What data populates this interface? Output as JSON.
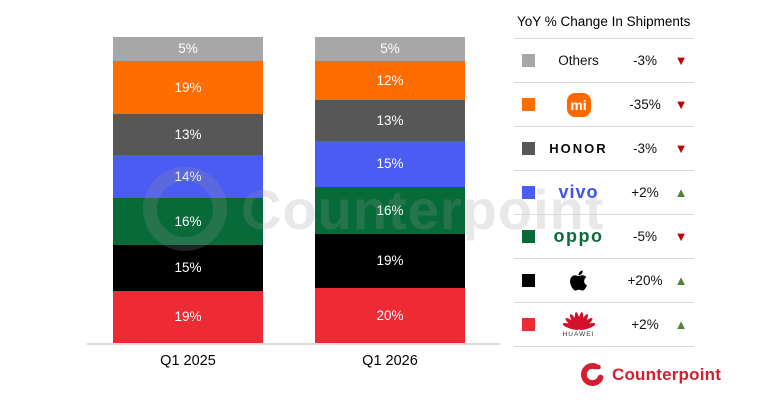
{
  "chart_data": {
    "type": "bar",
    "stacked": true,
    "categories": [
      "Q1 2025",
      "Q1 2026"
    ],
    "series": [
      {
        "name": "Others",
        "color": "#a7a7a7",
        "values": [
          5,
          5
        ]
      },
      {
        "name": "Xiaomi",
        "color": "#ff6c00",
        "values": [
          19,
          12
        ]
      },
      {
        "name": "HONOR",
        "color": "#575757",
        "values": [
          13,
          13
        ]
      },
      {
        "name": "vivo",
        "color": "#4b5cf2",
        "values": [
          14,
          15
        ]
      },
      {
        "name": "OPPO",
        "color": "#066b39",
        "values": [
          16,
          16
        ]
      },
      {
        "name": "Apple",
        "color": "#000000",
        "values": [
          15,
          19
        ]
      },
      {
        "name": "Huawei",
        "color": "#ee2b34",
        "values": [
          19,
          20
        ]
      }
    ],
    "value_format": "percent",
    "ylim": [
      0,
      100
    ],
    "grid": false,
    "legend_position": "right"
  },
  "legend": {
    "title": "YoY % Change In Shipments",
    "triangle_up_color": "#568233",
    "triangle_down_color": "#c00000",
    "rows": [
      {
        "id": "others",
        "label": "Others",
        "change": "-3%",
        "direction": "down",
        "color": "#a7a7a7"
      },
      {
        "id": "xiaomi",
        "label": "mi",
        "change": "-35%",
        "direction": "down",
        "color": "#ff6c00"
      },
      {
        "id": "honor",
        "label": "HONOR",
        "change": "-3%",
        "direction": "down",
        "color": "#575757"
      },
      {
        "id": "vivo",
        "label": "vivo",
        "change": "+2%",
        "direction": "up",
        "color": "#4b5cf2"
      },
      {
        "id": "oppo",
        "label": "oppo",
        "change": "-5%",
        "direction": "down",
        "color": "#066b39"
      },
      {
        "id": "apple",
        "label": "",
        "change": "+20%",
        "direction": "up",
        "color": "#000000"
      },
      {
        "id": "huawei",
        "label": "HUAWEI",
        "change": "+2%",
        "direction": "up",
        "color": "#ee2b34"
      }
    ]
  },
  "branding": {
    "watermark_text": "Counterpoint",
    "footer_logo_text": "Counterpoint",
    "brand_color": "#d22030"
  }
}
